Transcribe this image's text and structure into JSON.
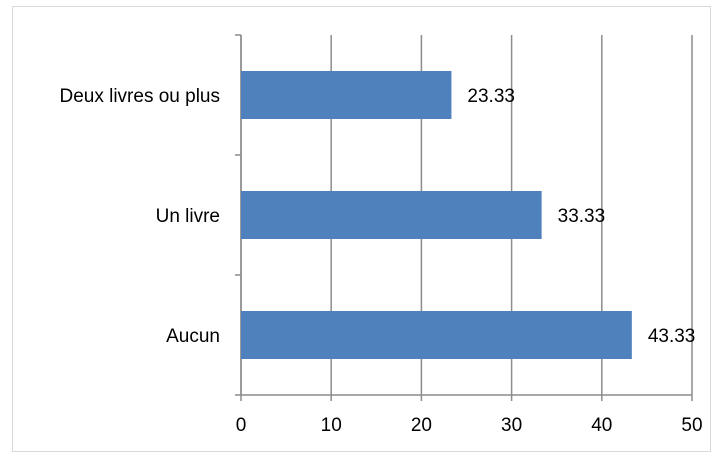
{
  "chart_data": {
    "type": "hbar",
    "categories": [
      "Deux livres ou plus",
      "Un livre",
      "Aucun"
    ],
    "values": [
      23.33,
      33.33,
      43.33
    ],
    "color": "#4f81bd",
    "xlim": [
      0,
      50
    ],
    "xticks": [
      0,
      10,
      20,
      30,
      40,
      50
    ],
    "grid": true
  }
}
